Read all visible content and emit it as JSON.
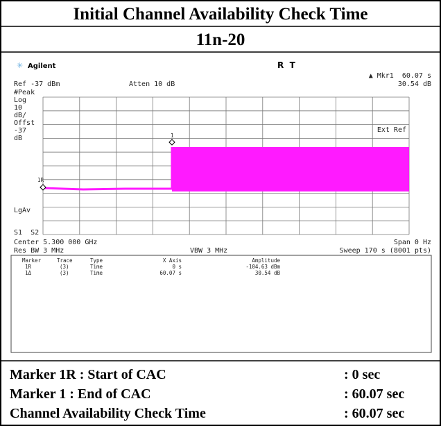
{
  "title": "Initial Channel Availability Check Time",
  "subtitle": "11n-20",
  "analyzer": {
    "brand": "Agilent",
    "status": "R  T",
    "marker_readout": "▲ Mkr1  60.07 s",
    "ref": "Ref -37 dBm",
    "atten": "Atten 10 dB",
    "marker_amplitude": "30.54 dB",
    "left_labels": [
      "#Peak",
      "Log",
      "10",
      "dB/",
      "Offst",
      "-37",
      "dB"
    ],
    "lgav": "LgAv",
    "s1s2": "S1  S2",
    "ext_ref": "Ext Ref",
    "trace_markers": [
      "1R",
      "1"
    ],
    "center": "Center 5.300 000 GHz",
    "span": "Span 0 Hz",
    "res_bw": "Res BW 3 MHz",
    "vbw": "VBW 3 MHz",
    "sweep": "Sweep 170 s (8001 pts)",
    "marker_table": {
      "header": [
        "Marker",
        "Trace",
        "Type",
        "X Axis",
        "Amplitude"
      ],
      "rows": [
        [
          "1R",
          "(3)",
          "Time",
          "0 s",
          "-104.63 dBm"
        ],
        [
          "1Δ",
          "(3)",
          "Time",
          "60.07 s",
          "30.54 dB"
        ]
      ]
    }
  },
  "results": [
    [
      "Marker 1R : Start of CAC",
      ": 0 sec"
    ],
    [
      "Marker 1 : End of CAC",
      ": 60.07 sec"
    ],
    [
      "Channel Availability Check Time",
      ": 60.07 sec"
    ]
  ]
}
